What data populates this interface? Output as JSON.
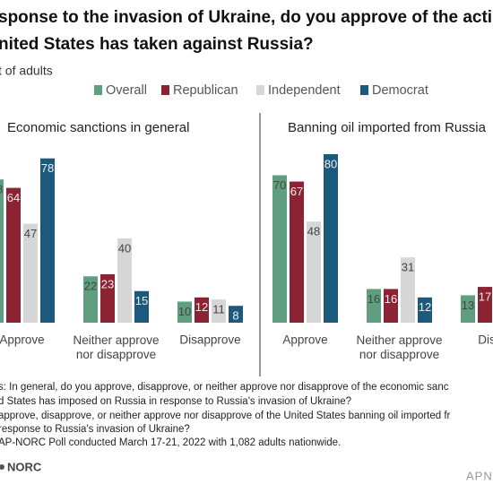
{
  "title": [
    "sponse to the invasion of Ukraine, do you approve of the acti",
    "nited States has taken against Russia?"
  ],
  "subtitle": "t of adults",
  "notes": [
    "s: In general, do you approve, disapprove, or neither approve nor disapprove of the economic sanc",
    "d States has imposed on Russia in response to Russia's invasion of Ukraine?",
    "approve, disapprove, or neither approve nor disapprove of the United States banning oil imported fr",
    "response to Russia's invasion of Ukraine?",
    "AP-NORC Poll conducted March 17-21, 2022 with 1,082 adults nationwide."
  ],
  "footer": {
    "left": "NORC",
    "right": "APNO"
  },
  "chart_data": [
    {
      "type": "bar",
      "title": "Economic sanctions in general",
      "categories": [
        "Approve",
        "Neither approve\nnor disapprove",
        "Disapprove"
      ],
      "series": [
        {
          "name": "Overall",
          "color": "#5f9e7f",
          "values": [
            68,
            22,
            10
          ]
        },
        {
          "name": "Republican",
          "color": "#8b2332",
          "values": [
            64,
            23,
            12
          ]
        },
        {
          "name": "Independent",
          "color": "#d6d6d6",
          "values": [
            47,
            40,
            11
          ]
        },
        {
          "name": "Democrat",
          "color": "#1c5a7d",
          "values": [
            78,
            15,
            8
          ]
        }
      ]
    },
    {
      "type": "bar",
      "title": "Banning oil imported from Russia",
      "categories": [
        "Approve",
        "Neither approve\nnor disapprove",
        "Disap"
      ],
      "series": [
        {
          "color": "#5f9e7f",
          "values": [
            70,
            16,
            13
          ]
        },
        {
          "color": "#8b2332",
          "values": [
            67,
            16,
            17
          ]
        },
        {
          "color": "#d6d6d6",
          "values": [
            48,
            31,
            null
          ]
        },
        {
          "color": "#1c5a7d",
          "values": [
            80,
            12,
            null
          ]
        }
      ]
    }
  ]
}
